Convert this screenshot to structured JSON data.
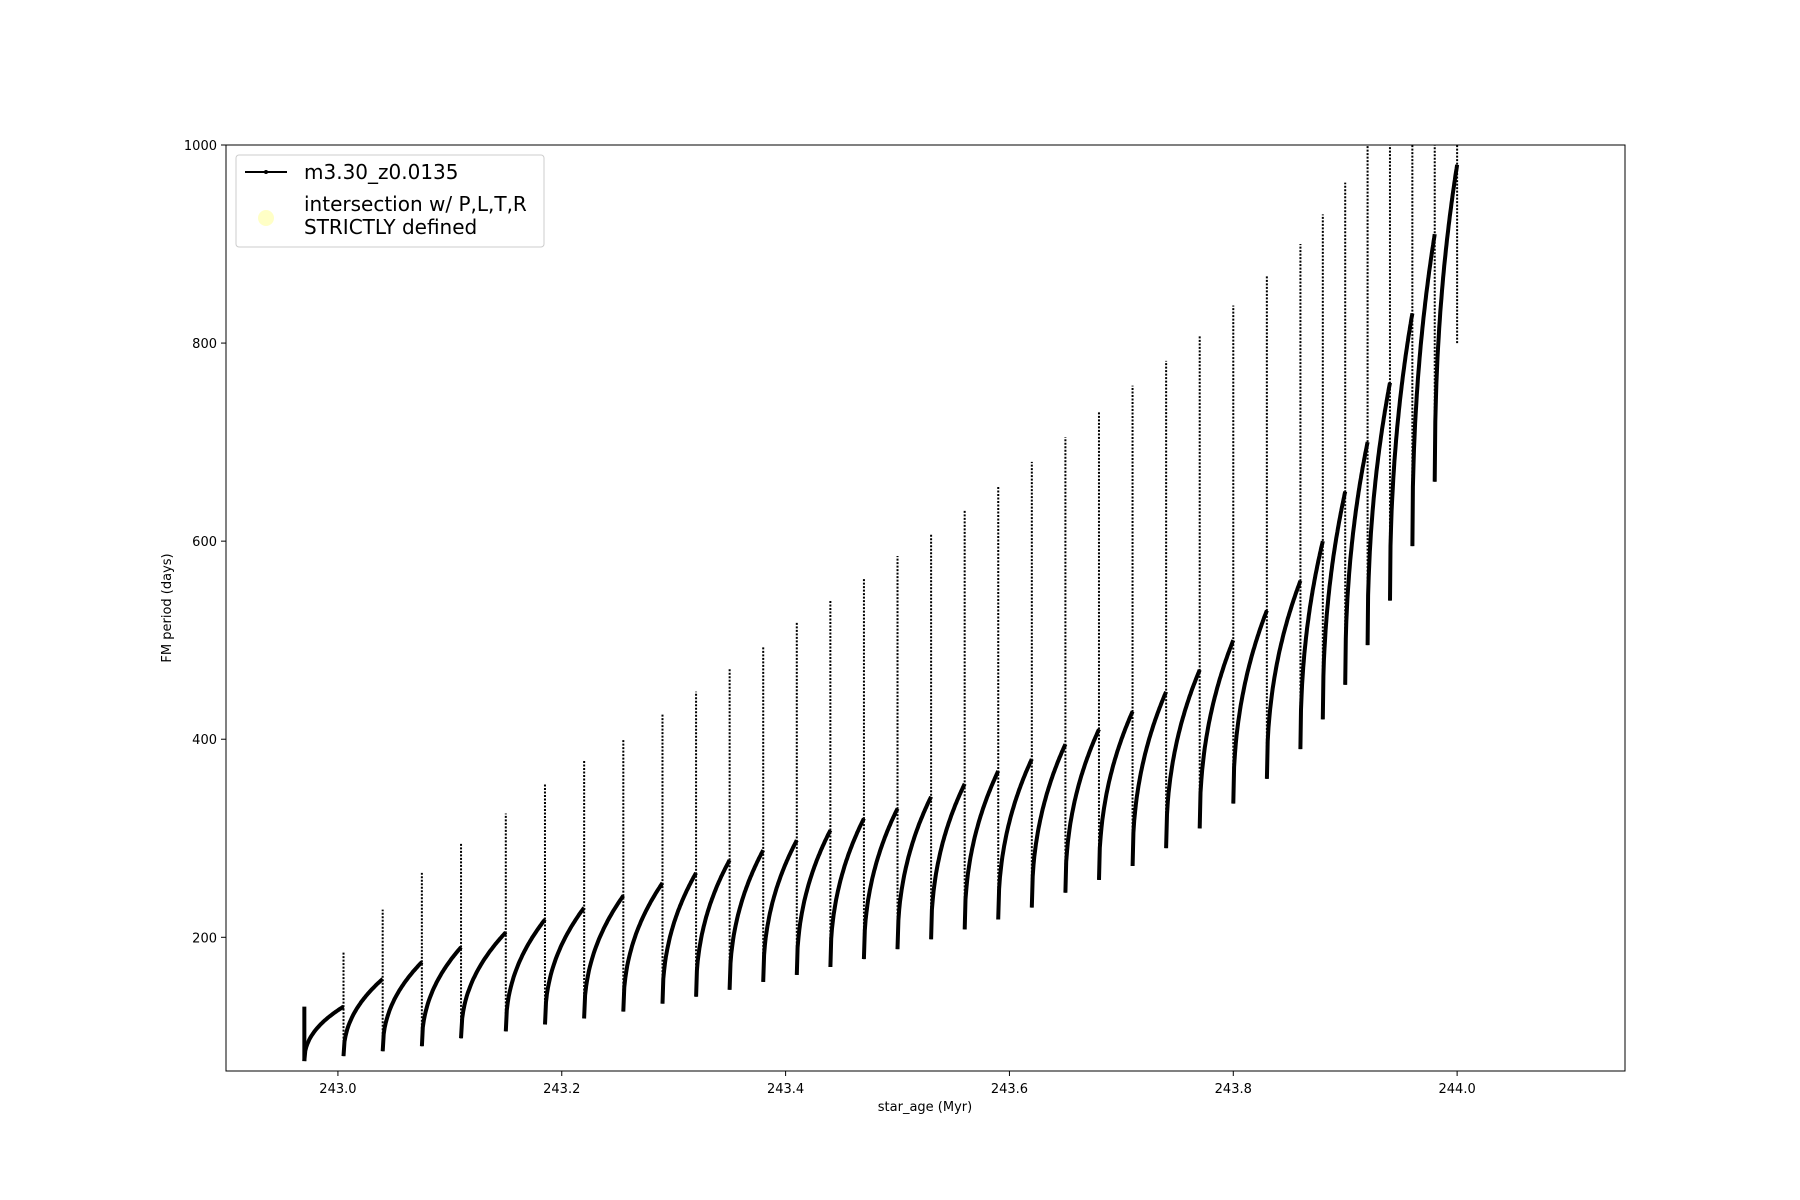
{
  "chart_data": {
    "type": "line",
    "title": "",
    "xlabel": "star_age (Myr)",
    "ylabel": "FM period (days)",
    "xlim": [
      242.9,
      244.15
    ],
    "ylim": [
      65,
      1000
    ],
    "xticks": [
      243.0,
      243.2,
      243.4,
      243.6,
      243.8,
      244.0
    ],
    "xtick_labels": [
      "243.0",
      "243.2",
      "243.4",
      "243.6",
      "243.8",
      "244.0"
    ],
    "yticks": [
      200,
      400,
      600,
      800,
      1000
    ],
    "ytick_labels": [
      "200",
      "400",
      "600",
      "800",
      "1000"
    ],
    "grid": false,
    "legend_position": "upper-left",
    "series": [
      {
        "name": "m3.30_z0.0135",
        "color": "#000000",
        "style": "line-with-dot-markers",
        "description_points": {
          "x": [
            242.97,
            243.005,
            243.04,
            243.075,
            243.11,
            243.15,
            243.185,
            243.22,
            243.255,
            243.29,
            243.32,
            243.35,
            243.38,
            243.41,
            243.44,
            243.47,
            243.5,
            243.53,
            243.56,
            243.59,
            243.62,
            243.65,
            243.68,
            243.71,
            243.74,
            243.77,
            243.8,
            243.83,
            243.86,
            243.88,
            243.9,
            243.92,
            243.94,
            243.96,
            243.98,
            244.0
          ],
          "y_peak": [
            130,
            158,
            175,
            190,
            205,
            218,
            230,
            242,
            255,
            265,
            278,
            288,
            298,
            308,
            320,
            330,
            342,
            355,
            368,
            380,
            395,
            410,
            428,
            448,
            470,
            500,
            530,
            560,
            600,
            650,
            700,
            760,
            830,
            910,
            980,
            1000
          ],
          "y_trough": [
            75,
            80,
            85,
            90,
            98,
            105,
            112,
            118,
            125,
            133,
            140,
            147,
            155,
            162,
            170,
            178,
            188,
            198,
            208,
            218,
            230,
            245,
            258,
            272,
            290,
            310,
            335,
            360,
            390,
            420,
            455,
            495,
            540,
            595,
            660,
            800
          ],
          "y_spike": [
            130,
            185,
            228,
            265,
            295,
            325,
            355,
            378,
            400,
            425,
            448,
            472,
            493,
            518,
            540,
            563,
            585,
            608,
            632,
            656,
            680,
            705,
            730,
            757,
            782,
            808,
            838,
            868,
            900,
            930,
            962,
            1000,
            1000,
            1000,
            1000,
            1000
          ]
        }
      },
      {
        "name": "intersection w/ P,L,T,R STRICTLY defined",
        "color": "#ffffc0",
        "style": "marker-only",
        "x": [],
        "y": []
      }
    ]
  },
  "legend": {
    "entries": [
      {
        "label": "m3.30_z0.0135"
      },
      {
        "label_line1": "intersection w/ P,L,T,R",
        "label_line2": "STRICTLY defined"
      }
    ]
  }
}
